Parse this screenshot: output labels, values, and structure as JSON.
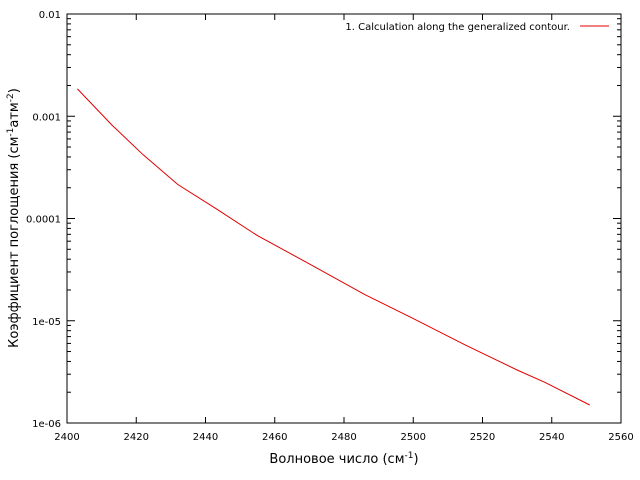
{
  "chart_data": {
    "type": "line",
    "title": "",
    "xlabel": "Волновое число (см-1)",
    "xlabel_parts": {
      "base": "Волновое число (см",
      "sup": "-1",
      "tail": ")"
    },
    "ylabel": "Коэффициент поглощения (см-1атм-2)",
    "ylabel_parts": {
      "a": "Коэффициент поглощения (см",
      "sup1": "-1",
      "b": "атм",
      "sup2": "-2",
      "c": ")"
    },
    "xlim": [
      2400,
      2560
    ],
    "ylim": [
      1e-06,
      0.01
    ],
    "y_scale": "log",
    "grid": false,
    "legend_position": "top-right",
    "x_ticks": [
      2400,
      2420,
      2440,
      2460,
      2480,
      2500,
      2520,
      2540,
      2560
    ],
    "x_tick_labels": [
      "2400",
      "2420",
      "2440",
      "2460",
      "2480",
      "2500",
      "2520",
      "2540",
      "2560"
    ],
    "y_ticks": [
      1e-06,
      1e-05,
      0.0001,
      0.001,
      0.01
    ],
    "y_tick_labels": [
      "1e-06",
      "1e-05",
      "0.0001",
      "0.001",
      "0.01"
    ],
    "series": [
      {
        "name": "1. Calculation along the generalized contour.",
        "color": "#e00000",
        "x": [
          2403,
          2413,
          2422,
          2432,
          2443,
          2455,
          2470,
          2486,
          2500,
          2515,
          2530,
          2538,
          2551
        ],
        "y": [
          0.00185,
          0.00082,
          0.00042,
          0.000215,
          0.000125,
          6.8e-05,
          3.6e-05,
          1.8e-05,
          1.05e-05,
          5.8e-06,
          3.3e-06,
          2.5e-06,
          1.5e-06
        ]
      }
    ]
  }
}
